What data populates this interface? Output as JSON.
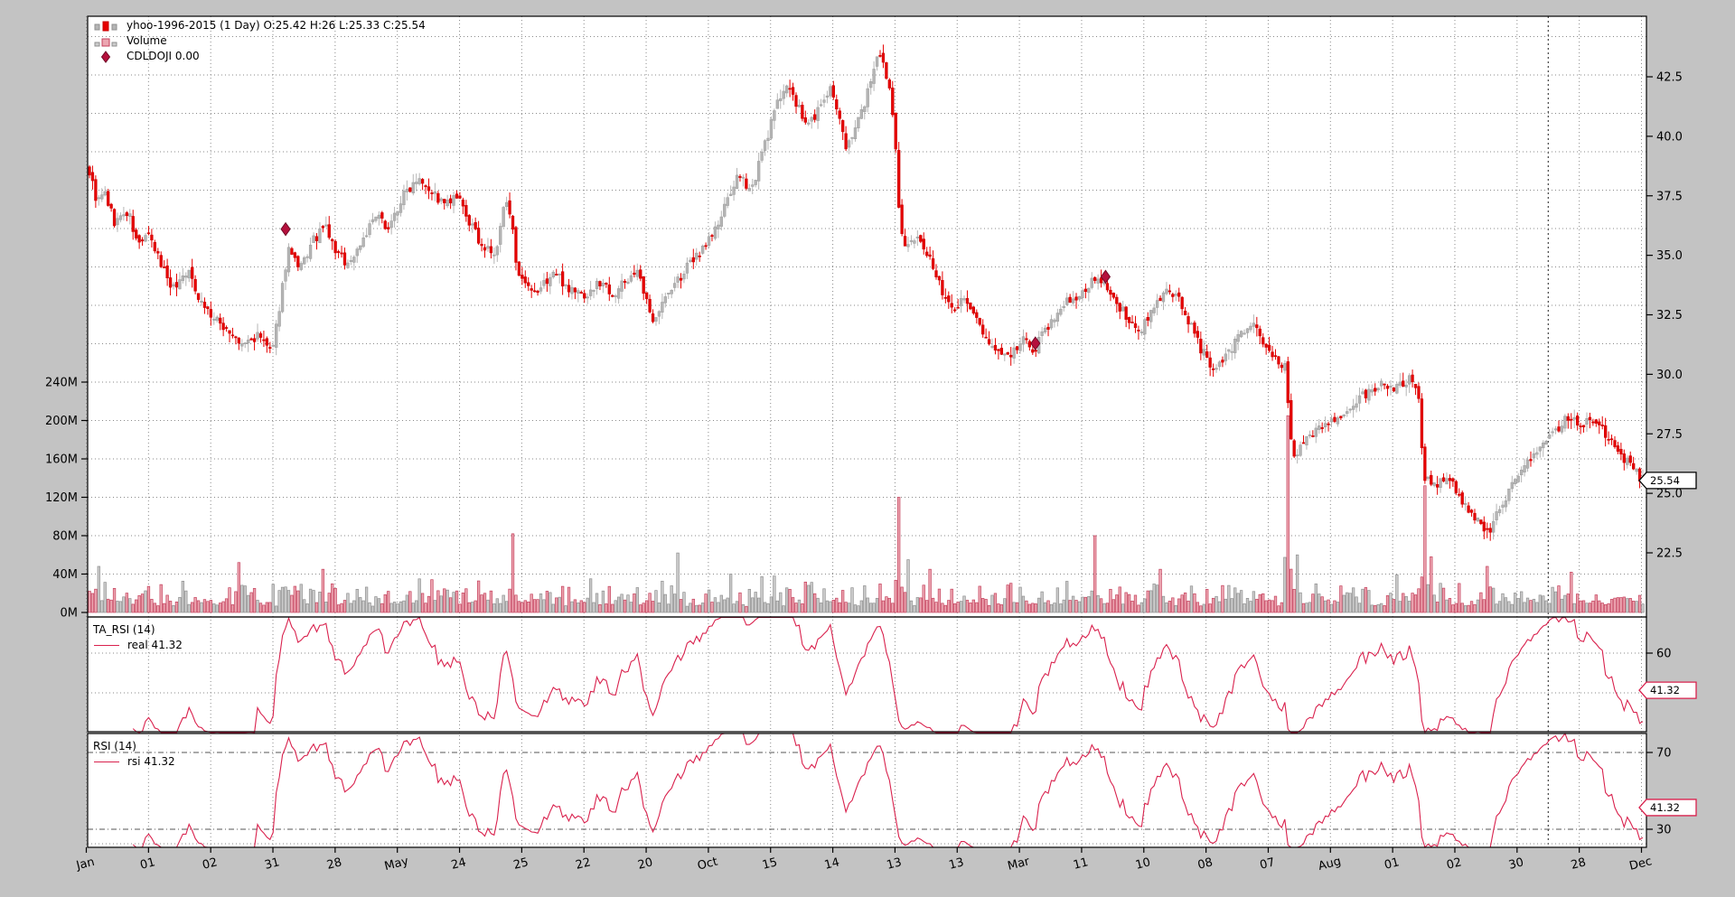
{
  "figure": {
    "bg_color": "#c3c3c3",
    "panel_color": "#ffffff",
    "grid_color": "#8a8a8a",
    "dark_grid_color": "#444444"
  },
  "legend_main": {
    "series": "yhoo-1996-2015 (1 Day) O:25.42 H:26 L:25.33 C:25.54",
    "volume": "Volume",
    "doji": "CDLDOJI 0.00"
  },
  "price_axis": {
    "ticks": [
      "42.5",
      "40.0",
      "37.5",
      "35.0",
      "32.5",
      "30.0",
      "27.5",
      "25.0",
      "22.5"
    ],
    "last_price_tag": "25.54"
  },
  "volume_axis": {
    "ticks": [
      "240M",
      "200M",
      "160M",
      "120M",
      "80M",
      "40M",
      "0M"
    ]
  },
  "x_axis": {
    "labels": [
      "Jan",
      "01",
      "02",
      "31",
      "28",
      "May",
      "24",
      "25",
      "22",
      "20",
      "Oct",
      "15",
      "14",
      "13",
      "13",
      "Mar",
      "11",
      "10",
      "08",
      "07",
      "Aug",
      "01",
      "02",
      "30",
      "28",
      "Dec"
    ],
    "dark_gridline_frac": 0.937
  },
  "rsi_panel_1": {
    "title": "TA_RSI (14)",
    "legend": "real 41.32",
    "ticks": [
      "60",
      "40"
    ],
    "tick_labels_visible": [
      "60"
    ],
    "tag": "41.32"
  },
  "rsi_panel_2": {
    "title": "RSI (14)",
    "legend": "rsi 41.32",
    "ticks": [
      "70",
      "30"
    ],
    "tick_labels_visible": [
      "70",
      "30"
    ],
    "tag": "41.32"
  },
  "chart_data": [
    {
      "type": "candlestick",
      "name": "yhoo-1996-2015 (1 Day)",
      "last_ohlc": {
        "open": 25.42,
        "high": 26.0,
        "low": 25.33,
        "close": 25.54
      },
      "num_points": 500,
      "ylim": [
        19.8,
        45.1
      ],
      "yticks": [
        42.5,
        40.0,
        37.5,
        35.0,
        32.5,
        30.0,
        27.5,
        25.0,
        22.5
      ],
      "up_color": "#b5b5b5",
      "up_edge": "#9c9c9c",
      "down_color": "#e60000",
      "down_edge": "#c80000",
      "doji_marker_color": "#b5103c",
      "doji_markers": [
        [
          0.127,
          36.1
        ],
        [
          0.608,
          31.3
        ],
        [
          0.653,
          34.1
        ]
      ],
      "close_anchors": [
        [
          0.0,
          38.5
        ],
        [
          0.005,
          37.2
        ],
        [
          0.01,
          37.6
        ],
        [
          0.016,
          36.4
        ],
        [
          0.025,
          36.8
        ],
        [
          0.031,
          35.4
        ],
        [
          0.037,
          35.9
        ],
        [
          0.045,
          34.8
        ],
        [
          0.054,
          33.6
        ],
        [
          0.063,
          34.4
        ],
        [
          0.071,
          33.2
        ],
        [
          0.08,
          32.3
        ],
        [
          0.089,
          31.9
        ],
        [
          0.097,
          31.2
        ],
        [
          0.109,
          31.6
        ],
        [
          0.118,
          30.9
        ],
        [
          0.123,
          33.2
        ],
        [
          0.128,
          35.3
        ],
        [
          0.135,
          34.3
        ],
        [
          0.144,
          35.6
        ],
        [
          0.152,
          36.2
        ],
        [
          0.158,
          35.2
        ],
        [
          0.167,
          34.6
        ],
        [
          0.176,
          35.7
        ],
        [
          0.184,
          36.6
        ],
        [
          0.193,
          36.2
        ],
        [
          0.202,
          37.5
        ],
        [
          0.212,
          38.4
        ],
        [
          0.219,
          37.8
        ],
        [
          0.228,
          37.1
        ],
        [
          0.237,
          37.4
        ],
        [
          0.245,
          36.3
        ],
        [
          0.254,
          35.3
        ],
        [
          0.262,
          35.0
        ],
        [
          0.267,
          37.2
        ],
        [
          0.272,
          36.8
        ],
        [
          0.275,
          34.1
        ],
        [
          0.286,
          33.3
        ],
        [
          0.299,
          34.3
        ],
        [
          0.309,
          33.6
        ],
        [
          0.32,
          33.3
        ],
        [
          0.329,
          33.9
        ],
        [
          0.338,
          33.4
        ],
        [
          0.352,
          34.4
        ],
        [
          0.362,
          32.3
        ],
        [
          0.377,
          33.8
        ],
        [
          0.391,
          35.0
        ],
        [
          0.405,
          36.3
        ],
        [
          0.416,
          38.2
        ],
        [
          0.427,
          37.9
        ],
        [
          0.434,
          39.5
        ],
        [
          0.441,
          41.0
        ],
        [
          0.448,
          42.3
        ],
        [
          0.451,
          41.9
        ],
        [
          0.462,
          40.4
        ],
        [
          0.469,
          41.1
        ],
        [
          0.477,
          42.0
        ],
        [
          0.487,
          39.6
        ],
        [
          0.497,
          41.0
        ],
        [
          0.504,
          42.6
        ],
        [
          0.508,
          43.3
        ],
        [
          0.512,
          42.8
        ],
        [
          0.516,
          41.6
        ],
        [
          0.519,
          39.6
        ],
        [
          0.522,
          36.1
        ],
        [
          0.526,
          35.3
        ],
        [
          0.534,
          35.7
        ],
        [
          0.541,
          34.9
        ],
        [
          0.548,
          33.6
        ],
        [
          0.556,
          32.8
        ],
        [
          0.563,
          33.2
        ],
        [
          0.57,
          32.4
        ],
        [
          0.577,
          31.6
        ],
        [
          0.584,
          30.9
        ],
        [
          0.592,
          30.6
        ],
        [
          0.6,
          31.5
        ],
        [
          0.608,
          31.0
        ],
        [
          0.615,
          31.9
        ],
        [
          0.623,
          32.6
        ],
        [
          0.631,
          33.1
        ],
        [
          0.64,
          33.5
        ],
        [
          0.646,
          33.9
        ],
        [
          0.653,
          33.8
        ],
        [
          0.662,
          33.0
        ],
        [
          0.67,
          32.1
        ],
        [
          0.677,
          31.8
        ],
        [
          0.685,
          32.8
        ],
        [
          0.693,
          33.6
        ],
        [
          0.7,
          33.3
        ],
        [
          0.708,
          32.2
        ],
        [
          0.716,
          31.0
        ],
        [
          0.723,
          30.2
        ],
        [
          0.731,
          30.6
        ],
        [
          0.739,
          31.6
        ],
        [
          0.747,
          32.2
        ],
        [
          0.754,
          31.6
        ],
        [
          0.761,
          30.7
        ],
        [
          0.767,
          30.4
        ],
        [
          0.771,
          30.2
        ],
        [
          0.772,
          27.9
        ],
        [
          0.775,
          26.3
        ],
        [
          0.781,
          27.0
        ],
        [
          0.79,
          27.6
        ],
        [
          0.799,
          28.0
        ],
        [
          0.808,
          28.4
        ],
        [
          0.816,
          28.9
        ],
        [
          0.825,
          29.3
        ],
        [
          0.834,
          29.6
        ],
        [
          0.842,
          29.4
        ],
        [
          0.851,
          29.9
        ],
        [
          0.855,
          29.5
        ],
        [
          0.859,
          25.8
        ],
        [
          0.866,
          25.3
        ],
        [
          0.874,
          25.7
        ],
        [
          0.883,
          24.8
        ],
        [
          0.892,
          24.0
        ],
        [
          0.9,
          23.3
        ],
        [
          0.909,
          24.4
        ],
        [
          0.918,
          25.6
        ],
        [
          0.926,
          26.4
        ],
        [
          0.935,
          26.9
        ],
        [
          0.944,
          27.6
        ],
        [
          0.953,
          28.3
        ],
        [
          0.961,
          27.8
        ],
        [
          0.969,
          28.2
        ],
        [
          0.976,
          27.5
        ],
        [
          0.984,
          26.8
        ],
        [
          0.992,
          26.2
        ],
        [
          1.0,
          25.54
        ]
      ]
    },
    {
      "type": "bar",
      "name": "Volume",
      "unit": "M",
      "ylim": [
        0,
        260
      ],
      "yticks": [
        0,
        40,
        80,
        120,
        160,
        200,
        240
      ],
      "base_range": [
        6,
        30
      ],
      "up_color": "#cccccc",
      "up_edge": "#8f8f8f",
      "down_color": "#eca6b1",
      "down_edge": "#c5405c",
      "spikes": [
        [
          0.007,
          48
        ],
        [
          0.096,
          52
        ],
        [
          0.15,
          45
        ],
        [
          0.212,
          35
        ],
        [
          0.273,
          82
        ],
        [
          0.378,
          62
        ],
        [
          0.412,
          40
        ],
        [
          0.441,
          38
        ],
        [
          0.522,
          120
        ],
        [
          0.527,
          55
        ],
        [
          0.541,
          45
        ],
        [
          0.647,
          80
        ],
        [
          0.69,
          45
        ],
        [
          0.772,
          205
        ],
        [
          0.777,
          60
        ],
        [
          0.859,
          132
        ],
        [
          0.863,
          58
        ],
        [
          0.9,
          48
        ],
        [
          0.953,
          42
        ]
      ]
    },
    {
      "type": "line",
      "name": "TA_RSI (14)",
      "series": "real",
      "period": 14,
      "last_value": 41.32,
      "ylim": [
        20,
        78
      ],
      "yticks": [
        60,
        40
      ],
      "hlines": [
        60,
        40
      ],
      "color": "#d9214d"
    },
    {
      "type": "line",
      "name": "RSI (14)",
      "series": "rsi",
      "period": 14,
      "last_value": 41.32,
      "ylim": [
        20.6,
        79.9
      ],
      "yticks": [
        70,
        30
      ],
      "hlines": [
        70,
        30
      ],
      "color": "#d9214d"
    }
  ]
}
